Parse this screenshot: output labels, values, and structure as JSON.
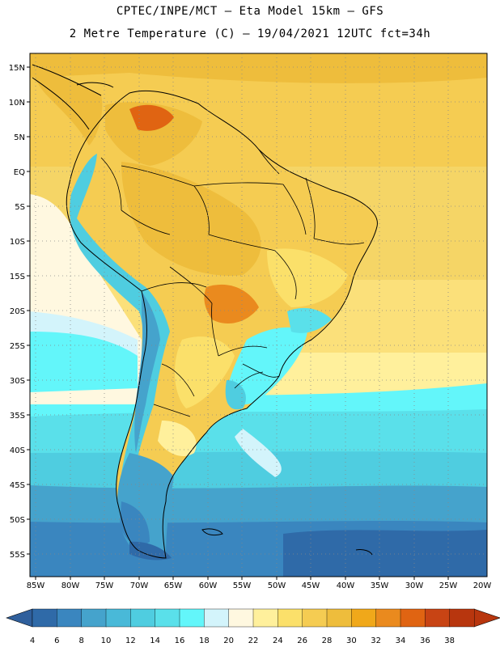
{
  "header": {
    "line1": "CPTEC/INPE/MCT –  Eta Model 15km – GFS",
    "line2": "2 Metre Temperature (C) – 19/04/2021 12UTC fct=34h"
  },
  "map": {
    "lat_labels": [
      "15N",
      "10N",
      "5N",
      "EQ",
      "5S",
      "10S",
      "15S",
      "20S",
      "25S",
      "30S",
      "35S",
      "40S",
      "45S",
      "50S",
      "55S"
    ],
    "lon_labels": [
      "85W",
      "80W",
      "75W",
      "70W",
      "65W",
      "60W",
      "55W",
      "50W",
      "45W",
      "40W",
      "35W",
      "30W",
      "25W",
      "20W"
    ]
  },
  "colorbar": {
    "ticks": [
      "4",
      "6",
      "8",
      "10",
      "12",
      "14",
      "16",
      "18",
      "20",
      "22",
      "24",
      "26",
      "28",
      "30",
      "32",
      "34",
      "36",
      "38"
    ],
    "colors": [
      "#2f6aa8",
      "#3a86bf",
      "#45a3cc",
      "#49b9d8",
      "#4fcde0",
      "#5ae0ea",
      "#63f6fa",
      "#d3f4fb",
      "#fff8e0",
      "#fff09c",
      "#fbe06a",
      "#f5cc52",
      "#eebd3c",
      "#f0a81a",
      "#ea8a1e",
      "#e06412",
      "#c84414",
      "#b8360e"
    ],
    "left_arrow_color": "#2f5f9c",
    "right_arrow_color": "#b8360e"
  }
}
